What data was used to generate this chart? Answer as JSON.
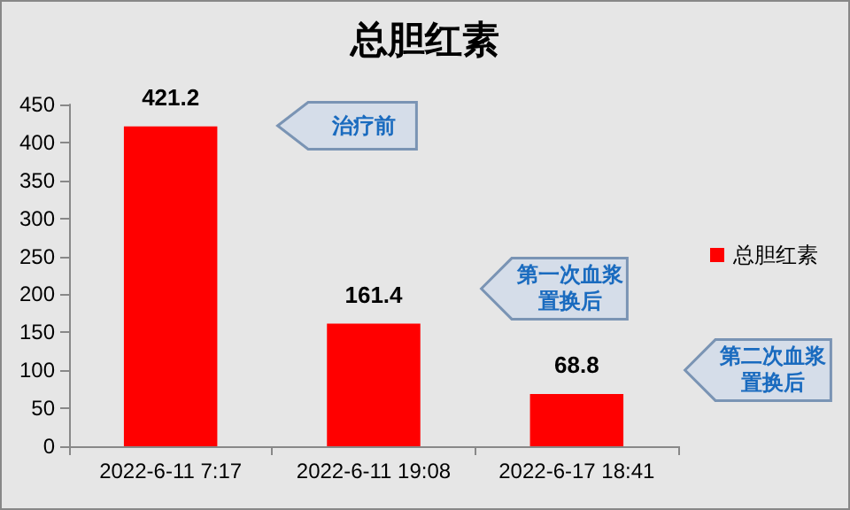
{
  "chart_data": {
    "type": "bar",
    "title": "总胆红素",
    "categories": [
      "2022-6-11 7:17",
      "2022-6-11 19:08",
      "2022-6-17 18:41"
    ],
    "series": [
      {
        "name": "总胆红素",
        "color": "#ff0000",
        "values": [
          421.2,
          161.4,
          68.8
        ]
      }
    ],
    "ylim": [
      0,
      450
    ],
    "yticks": [
      0,
      50,
      100,
      150,
      200,
      250,
      300,
      350,
      400,
      450
    ],
    "grid": false,
    "legend": "right",
    "data_labels": true,
    "annotations": [
      "治疗前",
      "第一次血浆置换后",
      "第二次血浆置换后"
    ]
  }
}
